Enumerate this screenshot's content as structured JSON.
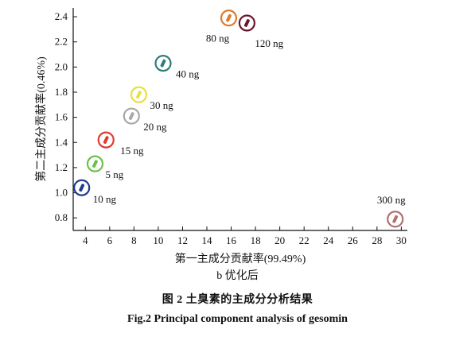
{
  "chart_data": {
    "type": "scatter",
    "xlabel": "第一主成分贡献率(99.49%)",
    "ylabel": "第二主成分贡献率(0.46%)",
    "xlim": [
      3,
      30.5
    ],
    "ylim": [
      0.7,
      2.47
    ],
    "x_ticks": [
      4,
      6,
      8,
      10,
      12,
      14,
      16,
      18,
      20,
      22,
      24,
      26,
      28,
      30
    ],
    "y_ticks": [
      0.8,
      1.0,
      1.2,
      1.4,
      1.6,
      1.8,
      2.0,
      2.2,
      2.4
    ],
    "y_tick_labels": [
      "0.8",
      "1.0",
      "1.2",
      "1.4",
      "1.6",
      "1.8",
      "2.0",
      "2.2",
      "2.4"
    ],
    "grid": false,
    "points": [
      {
        "label": "10 ng",
        "x": 3.7,
        "y": 1.04,
        "color": "#1f3a93"
      },
      {
        "label": "5 ng",
        "x": 4.8,
        "y": 1.23,
        "color": "#6cc04a"
      },
      {
        "label": "15 ng",
        "x": 5.7,
        "y": 1.42,
        "color": "#e03a2f"
      },
      {
        "label": "20 ng",
        "x": 7.8,
        "y": 1.61,
        "color": "#a8a8a8"
      },
      {
        "label": "30 ng",
        "x": 8.4,
        "y": 1.78,
        "color": "#e8e040"
      },
      {
        "label": "40 ng",
        "x": 10.4,
        "y": 2.03,
        "color": "#2a7d78"
      },
      {
        "label": "80 ng",
        "x": 15.8,
        "y": 2.39,
        "color": "#e07a2a"
      },
      {
        "label": "120 ng",
        "x": 17.3,
        "y": 2.35,
        "color": "#6b1630"
      },
      {
        "label": "300 ng",
        "x": 29.5,
        "y": 0.79,
        "color": "#b07070"
      }
    ]
  },
  "subcaption": "b 优化后",
  "figure_caption_cn": "图 2    土臭素的主成分分析结果",
  "figure_caption_en": "Fig.2    Principal component analysis of gesomin"
}
